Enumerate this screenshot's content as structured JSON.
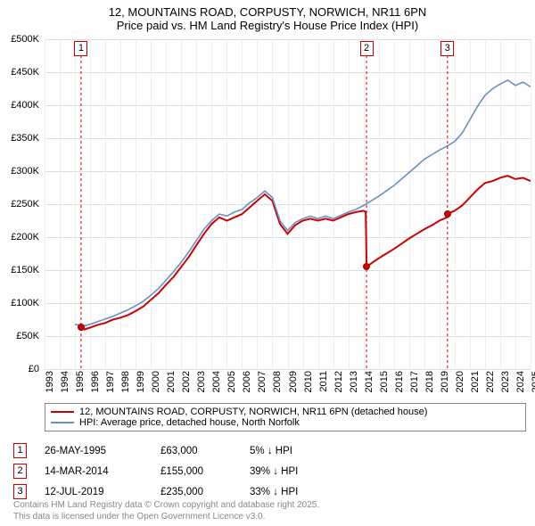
{
  "chart": {
    "type": "line",
    "title_line1": "12, MOUNTAINS ROAD, CORPUSTY, NORWICH, NR11 6PN",
    "title_line2": "Price paid vs. HM Land Registry's House Price Index (HPI)",
    "title_fontsize": 13,
    "background_color": "#ffffff",
    "grid_color": "#dddddd",
    "plot_bg": "#f9f9f9",
    "ylim": [
      0,
      500000
    ],
    "ytick_step": 50000,
    "y_labels": [
      "£0",
      "£50K",
      "£100K",
      "£150K",
      "£200K",
      "£250K",
      "£300K",
      "£350K",
      "£400K",
      "£450K",
      "£500K"
    ],
    "x_years": [
      1993,
      1994,
      1995,
      1996,
      1997,
      1998,
      1999,
      2000,
      2001,
      2002,
      2003,
      2004,
      2005,
      2006,
      2007,
      2008,
      2009,
      2010,
      2011,
      2012,
      2013,
      2014,
      2015,
      2016,
      2017,
      2018,
      2019,
      2020,
      2021,
      2022,
      2023,
      2024,
      2025
    ],
    "series": [
      {
        "name": "property",
        "label": "12, MOUNTAINS ROAD, CORPUSTY, NORWICH, NR11 6PN (detached house)",
        "color": "#cc0000",
        "line_width": 2,
        "data": [
          [
            1995.4,
            63000
          ],
          [
            1995.6,
            60000
          ],
          [
            1996,
            63000
          ],
          [
            1996.5,
            67000
          ],
          [
            1997,
            70000
          ],
          [
            1997.5,
            75000
          ],
          [
            1998,
            78000
          ],
          [
            1998.5,
            82000
          ],
          [
            1999,
            88000
          ],
          [
            1999.5,
            95000
          ],
          [
            2000,
            105000
          ],
          [
            2000.5,
            115000
          ],
          [
            2001,
            128000
          ],
          [
            2001.5,
            140000
          ],
          [
            2002,
            155000
          ],
          [
            2002.5,
            170000
          ],
          [
            2003,
            188000
          ],
          [
            2003.5,
            205000
          ],
          [
            2004,
            220000
          ],
          [
            2004.5,
            230000
          ],
          [
            2005,
            225000
          ],
          [
            2005.5,
            230000
          ],
          [
            2006,
            235000
          ],
          [
            2006.5,
            245000
          ],
          [
            2007,
            255000
          ],
          [
            2007.5,
            265000
          ],
          [
            2008,
            255000
          ],
          [
            2008.5,
            220000
          ],
          [
            2009,
            205000
          ],
          [
            2009.5,
            218000
          ],
          [
            2010,
            225000
          ],
          [
            2010.5,
            228000
          ],
          [
            2011,
            225000
          ],
          [
            2011.5,
            228000
          ],
          [
            2012,
            225000
          ],
          [
            2012.5,
            230000
          ],
          [
            2013,
            235000
          ],
          [
            2013.5,
            238000
          ],
          [
            2014,
            240000
          ],
          [
            2014.15,
            238000
          ],
          [
            2014.2,
            155000
          ],
          [
            2014.5,
            160000
          ],
          [
            2015,
            168000
          ],
          [
            2015.5,
            175000
          ],
          [
            2016,
            182000
          ],
          [
            2016.5,
            190000
          ],
          [
            2017,
            198000
          ],
          [
            2017.5,
            205000
          ],
          [
            2018,
            212000
          ],
          [
            2018.5,
            218000
          ],
          [
            2019,
            225000
          ],
          [
            2019.5,
            230000
          ],
          [
            2019.53,
            235000
          ],
          [
            2020,
            240000
          ],
          [
            2020.5,
            248000
          ],
          [
            2021,
            260000
          ],
          [
            2021.5,
            272000
          ],
          [
            2022,
            282000
          ],
          [
            2022.5,
            285000
          ],
          [
            2023,
            290000
          ],
          [
            2023.5,
            293000
          ],
          [
            2024,
            288000
          ],
          [
            2024.5,
            290000
          ],
          [
            2025,
            285000
          ]
        ]
      },
      {
        "name": "hpi",
        "label": "HPI: Average price, detached house, North Norfolk",
        "color": "#6a8fc5",
        "line_width": 1.6,
        "data": [
          [
            1995,
            68000
          ],
          [
            1995.5,
            65000
          ],
          [
            1996,
            68000
          ],
          [
            1996.5,
            72000
          ],
          [
            1997,
            76000
          ],
          [
            1997.5,
            80000
          ],
          [
            1998,
            85000
          ],
          [
            1998.5,
            90000
          ],
          [
            1999,
            96000
          ],
          [
            1999.5,
            103000
          ],
          [
            2000,
            112000
          ],
          [
            2000.5,
            122000
          ],
          [
            2001,
            135000
          ],
          [
            2001.5,
            148000
          ],
          [
            2002,
            162000
          ],
          [
            2002.5,
            178000
          ],
          [
            2003,
            195000
          ],
          [
            2003.5,
            212000
          ],
          [
            2004,
            225000
          ],
          [
            2004.5,
            235000
          ],
          [
            2005,
            232000
          ],
          [
            2005.5,
            238000
          ],
          [
            2006,
            242000
          ],
          [
            2006.5,
            252000
          ],
          [
            2007,
            260000
          ],
          [
            2007.5,
            270000
          ],
          [
            2008,
            260000
          ],
          [
            2008.5,
            225000
          ],
          [
            2009,
            210000
          ],
          [
            2009.5,
            222000
          ],
          [
            2010,
            228000
          ],
          [
            2010.5,
            232000
          ],
          [
            2011,
            228000
          ],
          [
            2011.5,
            232000
          ],
          [
            2012,
            228000
          ],
          [
            2012.5,
            233000
          ],
          [
            2013,
            238000
          ],
          [
            2013.5,
            242000
          ],
          [
            2014,
            248000
          ],
          [
            2014.5,
            255000
          ],
          [
            2015,
            262000
          ],
          [
            2015.5,
            270000
          ],
          [
            2016,
            278000
          ],
          [
            2016.5,
            288000
          ],
          [
            2017,
            298000
          ],
          [
            2017.5,
            308000
          ],
          [
            2018,
            318000
          ],
          [
            2018.5,
            325000
          ],
          [
            2019,
            332000
          ],
          [
            2019.5,
            338000
          ],
          [
            2020,
            345000
          ],
          [
            2020.5,
            358000
          ],
          [
            2021,
            378000
          ],
          [
            2021.5,
            398000
          ],
          [
            2022,
            415000
          ],
          [
            2022.5,
            425000
          ],
          [
            2023,
            432000
          ],
          [
            2023.5,
            438000
          ],
          [
            2024,
            430000
          ],
          [
            2024.5,
            435000
          ],
          [
            2025,
            428000
          ]
        ]
      }
    ],
    "sale_markers": [
      {
        "n": "1",
        "year": 1995.4,
        "top_y": 2
      },
      {
        "n": "2",
        "year": 2014.2,
        "top_y": 2
      },
      {
        "n": "3",
        "year": 2019.53,
        "top_y": 2
      }
    ],
    "sale_points": [
      {
        "year": 1995.4,
        "price": 63000
      },
      {
        "year": 2014.2,
        "price": 155000
      },
      {
        "year": 2019.53,
        "price": 235000
      }
    ]
  },
  "legend": {
    "rows": [
      {
        "color": "#cc0000",
        "label": "12, MOUNTAINS ROAD, CORPUSTY, NORWICH, NR11 6PN (detached house)"
      },
      {
        "color": "#6a8fc5",
        "label": "HPI: Average price, detached house, North Norfolk"
      }
    ]
  },
  "sales": [
    {
      "n": "1",
      "date": "26-MAY-1995",
      "price": "£63,000",
      "pct": "5% ↓ HPI"
    },
    {
      "n": "2",
      "date": "14-MAR-2014",
      "price": "£155,000",
      "pct": "39% ↓ HPI"
    },
    {
      "n": "3",
      "date": "12-JUL-2019",
      "price": "£235,000",
      "pct": "33% ↓ HPI"
    }
  ],
  "footer": {
    "line1": "Contains HM Land Registry data © Crown copyright and database right 2025.",
    "line2": "This data is licensed under the Open Government Licence v3.0."
  }
}
